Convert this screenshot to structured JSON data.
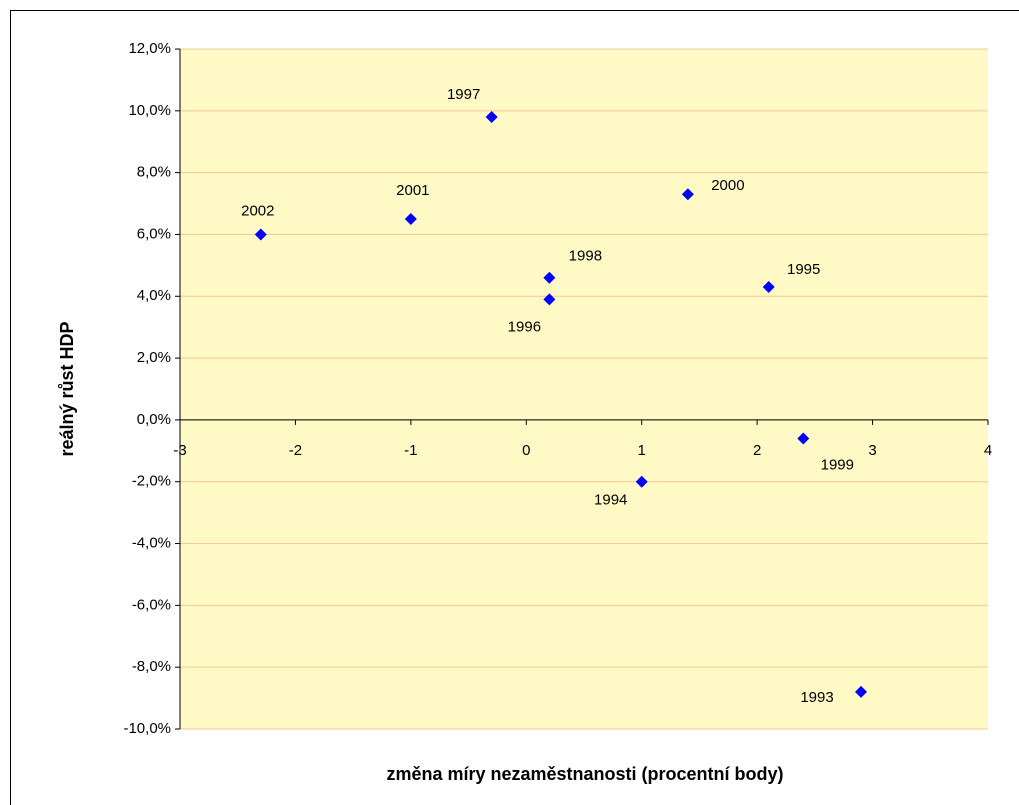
{
  "chart_data": {
    "type": "scatter",
    "x_label": "změna míry nezaměstnanosti (procentní body)",
    "y_label": "reálný růst HDP",
    "labels": [
      "1993",
      "1994",
      "1995",
      "1996",
      "1997",
      "1998",
      "1999",
      "2000",
      "2001",
      "2002"
    ],
    "x": [
      2.9,
      1.0,
      2.1,
      0.2,
      -0.3,
      0.2,
      2.4,
      1.4,
      -1.0,
      -2.3
    ],
    "values": [
      -8.8,
      -2.0,
      4.3,
      3.9,
      9.8,
      4.6,
      -0.6,
      7.3,
      6.5,
      6.0
    ],
    "color": "#0000ff",
    "xlim": [
      -3,
      4
    ],
    "xticks": [
      -3,
      -2,
      -1,
      0,
      1,
      2,
      3,
      4
    ],
    "ylim": [
      -10,
      12
    ],
    "yticks": [
      {
        "value": -10,
        "label": "-10,0%"
      },
      {
        "value": -8,
        "label": "-8,0%"
      },
      {
        "value": -6,
        "label": "-6,0%"
      },
      {
        "value": -4,
        "label": "-4,0%"
      },
      {
        "value": -2,
        "label": "-2,0%"
      },
      {
        "value": 0,
        "label": "0,0%"
      },
      {
        "value": 2,
        "label": "2,0%"
      },
      {
        "value": 4,
        "label": "4,0%"
      },
      {
        "value": 6,
        "label": "6,0%"
      },
      {
        "value": 8,
        "label": "8,0%"
      },
      {
        "value": 10,
        "label": "10,0%"
      },
      {
        "value": 12,
        "label": "12,0%"
      }
    ],
    "grid": true
  }
}
